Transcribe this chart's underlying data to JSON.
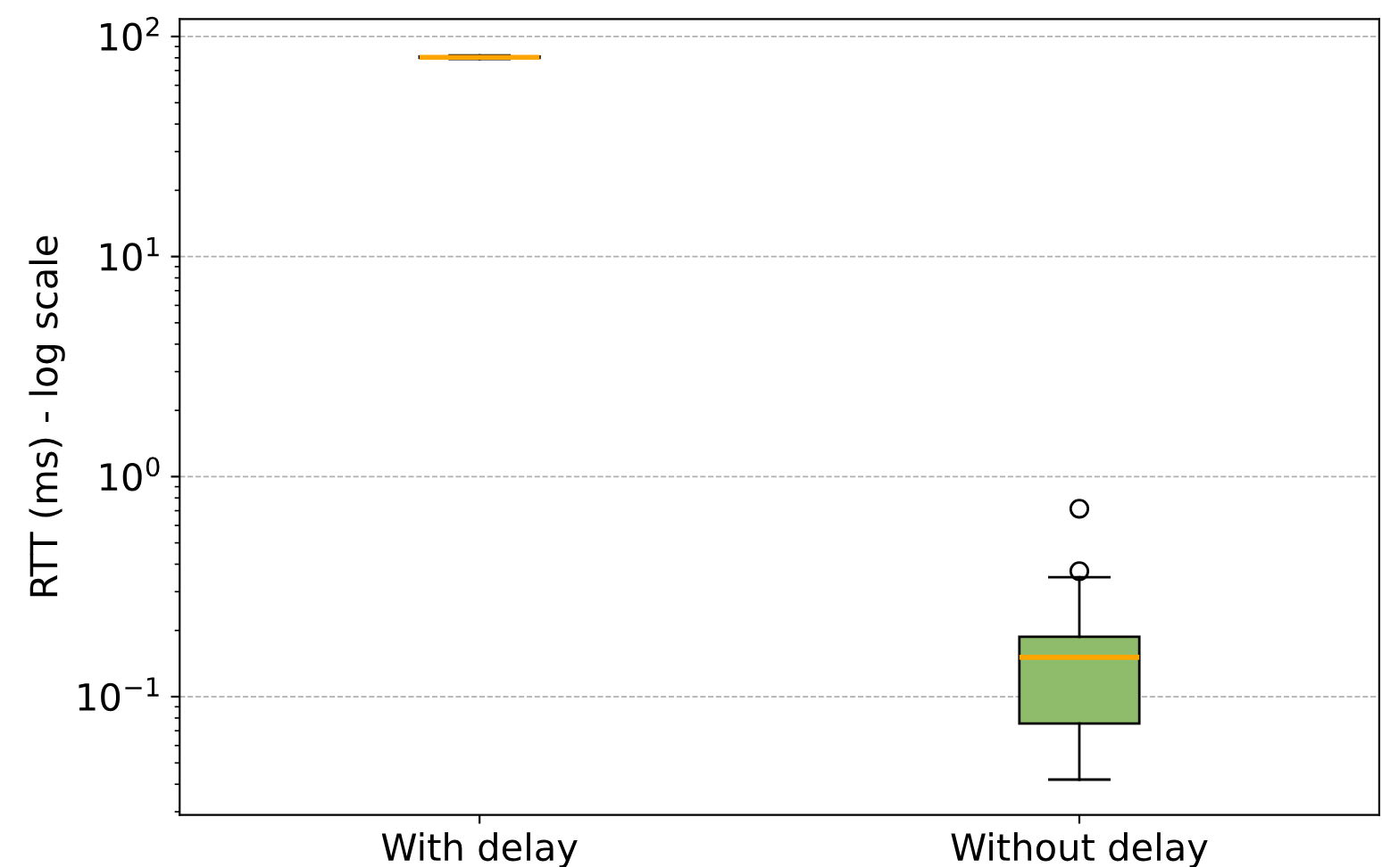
{
  "chart_data": {
    "type": "box",
    "ylabel": "RTT (ms) - log scale",
    "categories": [
      "With delay",
      "Without delay"
    ],
    "boxes": [
      {
        "low": 79,
        "q1": 80,
        "median": 80.5,
        "q3": 81,
        "high": 82
      },
      {
        "low": 0.042,
        "q1": 0.0755,
        "median": 0.151,
        "q3": 0.187,
        "high": 0.349,
        "outliers": [
          0.372,
          0.715
        ]
      }
    ],
    "colors": [
      "#add8e6",
      "#8fbc6a"
    ],
    "log": "y",
    "ylim": [
      0.029,
      120
    ],
    "yticks": [
      {
        "value": 0.1,
        "label": "10$^{−1}$"
      },
      {
        "value": 1,
        "label": "10$^{0}$"
      },
      {
        "value": 10,
        "label": "10$^{1}$"
      },
      {
        "value": 100,
        "label": "10$^{2}$"
      }
    ],
    "grid": "y"
  }
}
